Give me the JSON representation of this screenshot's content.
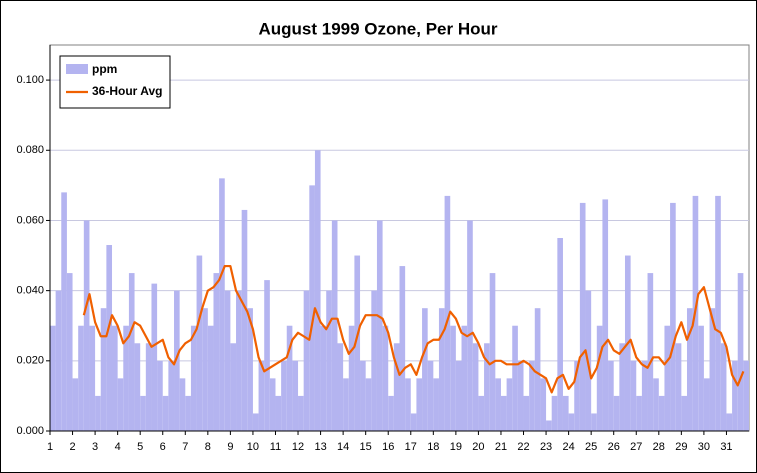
{
  "chart_data": {
    "type": "bar_line",
    "title": "August 1999 Ozone, Per Hour",
    "x": [
      1,
      1.25,
      1.5,
      1.75,
      2,
      2.25,
      2.5,
      2.75,
      3,
      3.25,
      3.5,
      3.75,
      4,
      4.25,
      4.5,
      4.75,
      5,
      5.25,
      5.5,
      5.75,
      6,
      6.25,
      6.5,
      6.75,
      7,
      7.25,
      7.5,
      7.75,
      8,
      8.25,
      8.5,
      8.75,
      9,
      9.25,
      9.5,
      9.75,
      10,
      10.25,
      10.5,
      10.75,
      11,
      11.25,
      11.5,
      11.75,
      12,
      12.25,
      12.5,
      12.75,
      13,
      13.25,
      13.5,
      13.75,
      14,
      14.25,
      14.5,
      14.75,
      15,
      15.25,
      15.5,
      15.75,
      16,
      16.25,
      16.5,
      16.75,
      17,
      17.25,
      17.5,
      17.75,
      18,
      18.25,
      18.5,
      18.75,
      19,
      19.25,
      19.5,
      19.75,
      20,
      20.25,
      20.5,
      20.75,
      21,
      21.25,
      21.5,
      21.75,
      22,
      22.25,
      22.5,
      22.75,
      23,
      23.25,
      23.5,
      23.75,
      24,
      24.25,
      24.5,
      24.75,
      25,
      25.25,
      25.5,
      25.75,
      26,
      26.25,
      26.5,
      26.75,
      27,
      27.25,
      27.5,
      27.75,
      28,
      28.25,
      28.5,
      28.75,
      29,
      29.25,
      29.5,
      29.75,
      30,
      30.25,
      30.5,
      30.75,
      31,
      31.25,
      31.5,
      31.75
    ],
    "series": [
      {
        "name": "ppm",
        "color": "#b4b4f0",
        "values": [
          0.03,
          0.04,
          0.068,
          0.045,
          0.015,
          0.03,
          0.06,
          0.03,
          0.01,
          0.035,
          0.053,
          0.03,
          0.015,
          0.03,
          0.045,
          0.025,
          0.01,
          0.025,
          0.042,
          0.02,
          0.01,
          0.02,
          0.04,
          0.015,
          0.01,
          0.03,
          0.05,
          0.035,
          0.03,
          0.045,
          0.072,
          0.04,
          0.025,
          0.04,
          0.063,
          0.035,
          0.005,
          0.02,
          0.043,
          0.015,
          0.01,
          0.02,
          0.03,
          0.02,
          0.01,
          0.04,
          0.07,
          0.08,
          0.03,
          0.04,
          0.06,
          0.025,
          0.015,
          0.03,
          0.05,
          0.02,
          0.015,
          0.04,
          0.06,
          0.03,
          0.01,
          0.025,
          0.047,
          0.015,
          0.005,
          0.015,
          0.035,
          0.02,
          0.015,
          0.035,
          0.067,
          0.03,
          0.02,
          0.03,
          0.06,
          0.025,
          0.01,
          0.025,
          0.045,
          0.015,
          0.01,
          0.015,
          0.03,
          0.02,
          0.01,
          0.02,
          0.035,
          0.015,
          0.003,
          0.01,
          0.055,
          0.01,
          0.005,
          0.02,
          0.065,
          0.04,
          0.005,
          0.03,
          0.066,
          0.02,
          0.01,
          0.025,
          0.05,
          0.02,
          0.01,
          0.02,
          0.045,
          0.015,
          0.01,
          0.03,
          0.065,
          0.025,
          0.01,
          0.035,
          0.067,
          0.03,
          0.015,
          0.035,
          0.067,
          0.025,
          0.005,
          0.02,
          0.045,
          0.02
        ]
      },
      {
        "name": "36-Hour Avg",
        "color": "#f06000",
        "values": [
          null,
          null,
          null,
          null,
          null,
          null,
          0.033,
          0.039,
          0.031,
          0.027,
          0.027,
          0.033,
          0.03,
          0.025,
          0.027,
          0.031,
          0.03,
          0.027,
          0.024,
          0.025,
          0.026,
          0.021,
          0.019,
          0.023,
          0.025,
          0.026,
          0.029,
          0.035,
          0.04,
          0.041,
          0.043,
          0.047,
          0.047,
          0.04,
          0.037,
          0.034,
          0.029,
          0.021,
          0.017,
          0.018,
          0.019,
          0.02,
          0.021,
          0.026,
          0.028,
          0.027,
          0.026,
          0.035,
          0.031,
          0.029,
          0.032,
          0.032,
          0.026,
          0.022,
          0.024,
          0.03,
          0.033,
          0.033,
          0.033,
          0.032,
          0.028,
          0.021,
          0.016,
          0.018,
          0.019,
          0.016,
          0.021,
          0.025,
          0.026,
          0.026,
          0.029,
          0.034,
          0.032,
          0.028,
          0.027,
          0.028,
          0.025,
          0.021,
          0.019,
          0.02,
          0.02,
          0.019,
          0.019,
          0.019,
          0.02,
          0.019,
          0.017,
          0.016,
          0.015,
          0.011,
          0.015,
          0.016,
          0.012,
          0.014,
          0.021,
          0.023,
          0.015,
          0.018,
          0.024,
          0.026,
          0.023,
          0.022,
          0.024,
          0.026,
          0.021,
          0.019,
          0.018,
          0.021,
          0.021,
          0.019,
          0.021,
          0.027,
          0.031,
          0.026,
          0.03,
          0.039,
          0.041,
          0.035,
          0.029,
          0.028,
          0.024,
          0.016,
          0.013,
          0.017
        ]
      }
    ],
    "xlim": [
      1,
      32
    ],
    "xticks": [
      1,
      2,
      3,
      4,
      5,
      6,
      7,
      8,
      9,
      10,
      11,
      12,
      13,
      14,
      15,
      16,
      17,
      18,
      19,
      20,
      21,
      22,
      23,
      24,
      25,
      26,
      27,
      28,
      29,
      30,
      31
    ],
    "ylim": [
      0,
      0.11
    ],
    "yticks": [
      {
        "value": 0,
        "label": "0.000"
      },
      {
        "value": 0.02,
        "label": "0.020"
      },
      {
        "value": 0.04,
        "label": "0.040"
      },
      {
        "value": 0.06,
        "label": "0.060"
      },
      {
        "value": 0.08,
        "label": "0.080"
      },
      {
        "value": 0.1,
        "label": "0.100"
      }
    ],
    "grid": true,
    "legend": "upper left"
  }
}
